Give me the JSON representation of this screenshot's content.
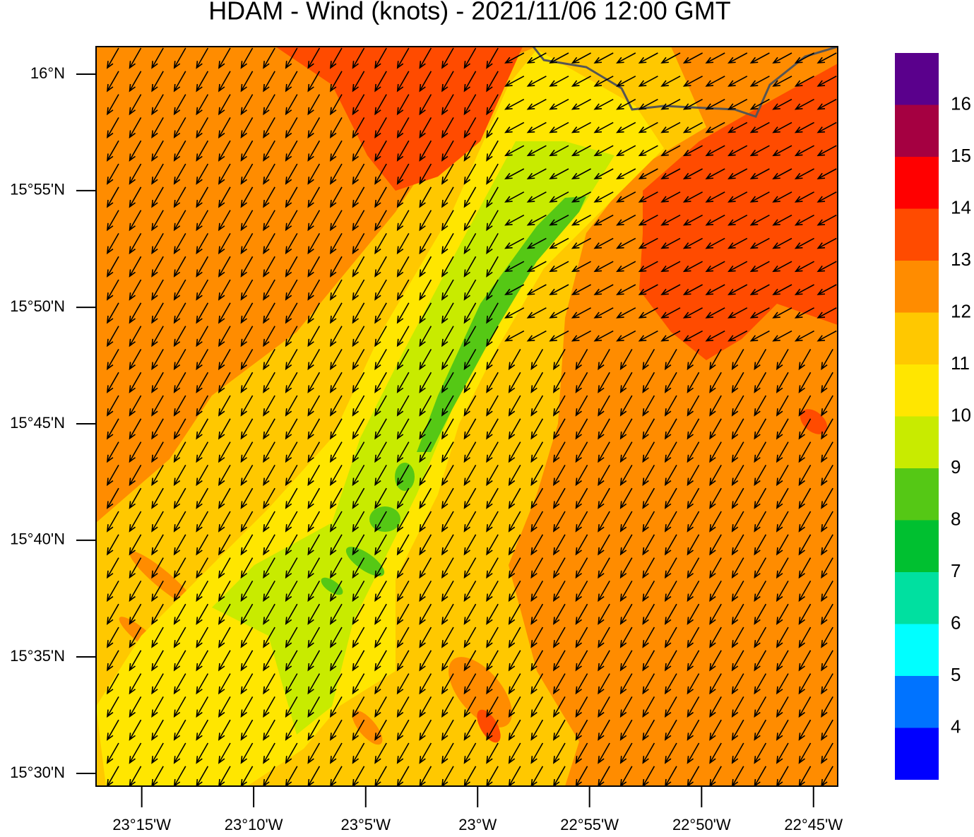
{
  "title": "HDAM - Wind (knots)  -  2021/11/06  12:00 GMT",
  "map": {
    "xlim": [
      -23.284,
      -22.732
    ],
    "ylim": [
      15.4909,
      16.0197
    ],
    "xticks": [
      {
        "value": -23.25,
        "label": "23°15'W"
      },
      {
        "value": -23.1667,
        "label": "23°10'W"
      },
      {
        "value": -23.0833,
        "label": "23°5'W"
      },
      {
        "value": -23,
        "label": "23°W"
      },
      {
        "value": -22.9167,
        "label": "22°55'W"
      },
      {
        "value": -22.8333,
        "label": "22°50'W"
      },
      {
        "value": -22.75,
        "label": "22°45'W"
      }
    ],
    "yticks": [
      {
        "value": 16,
        "label": "16°N"
      },
      {
        "value": 15.9167,
        "label": "15°55'N"
      },
      {
        "value": 15.8333,
        "label": "15°50'N"
      },
      {
        "value": 15.75,
        "label": "15°45'N"
      },
      {
        "value": 15.6667,
        "label": "15°40'N"
      },
      {
        "value": 15.5833,
        "label": "15°35'N"
      },
      {
        "value": 15.5,
        "label": "15°30'N"
      }
    ]
  },
  "colorbar": {
    "levels": [
      4,
      5,
      6,
      7,
      8,
      9,
      10,
      11,
      12,
      13,
      14,
      15,
      16
    ],
    "colors": [
      "#0000ff",
      "#0073ff",
      "#00ffff",
      "#00e0a0",
      "#00c030",
      "#55c815",
      "#c8eb00",
      "#ffe600",
      "#ffc800",
      "#ff8c00",
      "#ff4b00",
      "#ff0000",
      "#a50041",
      "#5a008c"
    ]
  }
}
